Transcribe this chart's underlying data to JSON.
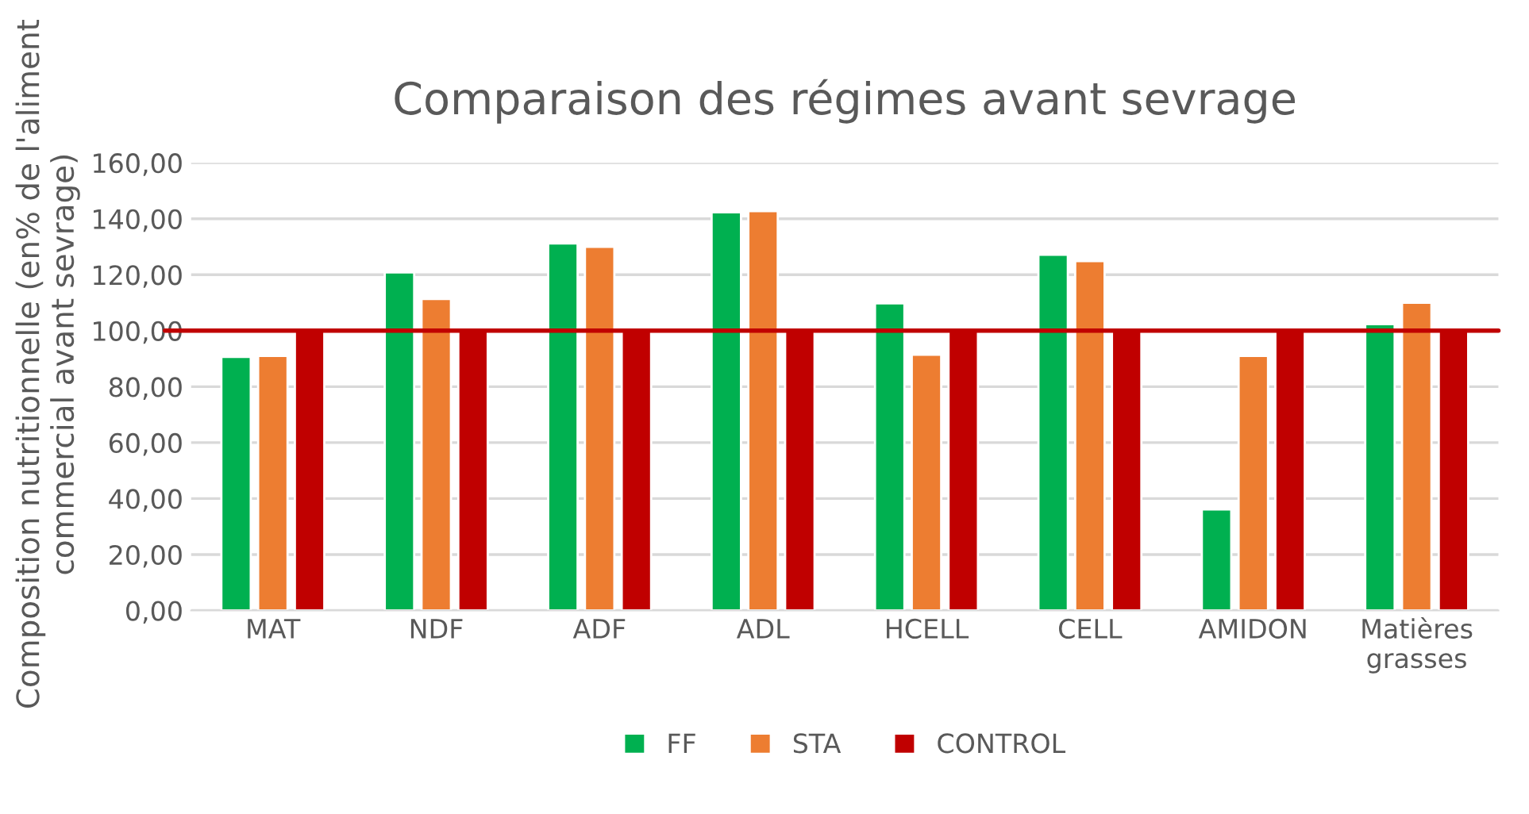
{
  "chart_data": {
    "type": "bar",
    "title": "Comparaison des régimes avant sevrage",
    "ylabel": "Composition nutritionnelle (en% de l'aliment commercial avant sevrage)",
    "categories": [
      "MAT",
      "NDF",
      "ADF",
      "ADL",
      "HCELL",
      "CELL",
      "AMIDON",
      "Matières grasses"
    ],
    "series": [
      {
        "name": "FF",
        "color": "#00b050",
        "values": [
          90.6,
          120.8,
          131.2,
          142.3,
          109.8,
          127.1,
          36.1,
          102.3
        ]
      },
      {
        "name": "STA",
        "color": "#ed7d31",
        "values": [
          91.0,
          111.3,
          130.0,
          142.7,
          91.4,
          124.9,
          91.0,
          110.0
        ]
      },
      {
        "name": "CONTROL",
        "color": "#c00000",
        "values": [
          100,
          100,
          100,
          100,
          100,
          100,
          100,
          100
        ]
      }
    ],
    "ylim": [
      0,
      160
    ],
    "yticks": [
      {
        "value": 0,
        "label": "0,00"
      },
      {
        "value": 20,
        "label": "20,00"
      },
      {
        "value": 40,
        "label": "40,00"
      },
      {
        "value": 60,
        "label": "60,00"
      },
      {
        "value": 80,
        "label": "80,00"
      },
      {
        "value": 100,
        "label": "100,00"
      },
      {
        "value": 120,
        "label": "120,00"
      },
      {
        "value": 140,
        "label": "140,00"
      },
      {
        "value": 160,
        "label": "160,00"
      }
    ],
    "ref_lines": [
      {
        "axis": "y",
        "value": 100,
        "label": null,
        "color": "#c00000"
      }
    ],
    "grid": "y",
    "legend": "bottom"
  }
}
